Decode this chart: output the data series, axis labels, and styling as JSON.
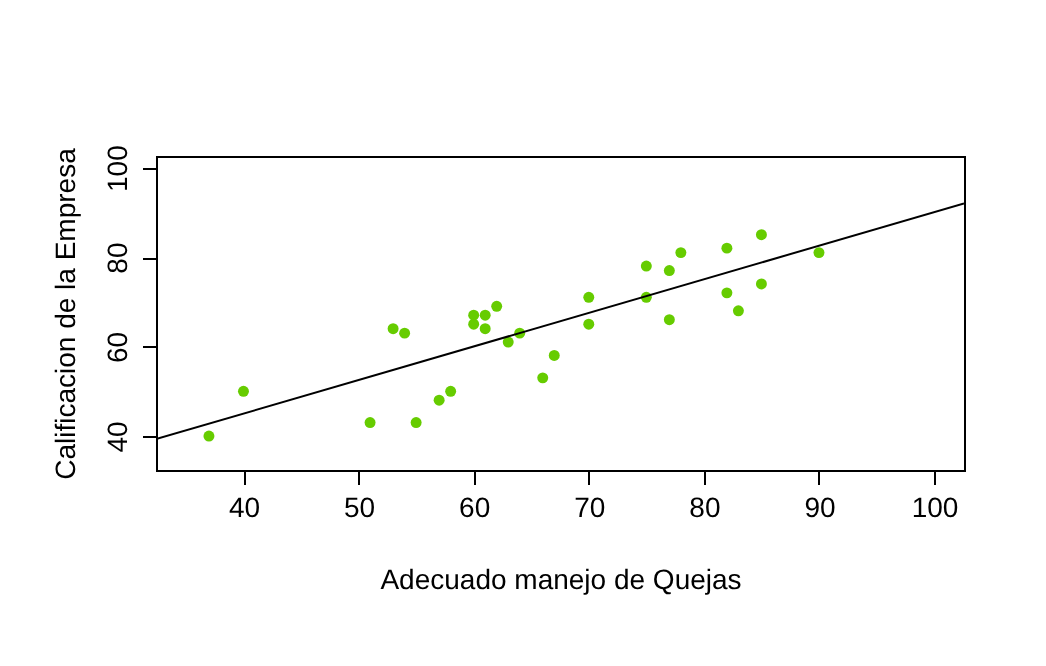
{
  "chart_data": {
    "type": "scatter",
    "xlabel": "Adecuado manejo de Quejas",
    "ylabel": "Calificacion de la Empresa",
    "xlim": [
      32.4,
      102.6
    ],
    "ylim": [
      32.4,
      102.6
    ],
    "xticks": [
      40,
      50,
      60,
      70,
      80,
      90,
      100
    ],
    "yticks": [
      40,
      60,
      80,
      100
    ],
    "grid": false,
    "series": [
      {
        "marker": "circle",
        "color": "#66cc00",
        "x": [
          37,
          40,
          51,
          53,
          54,
          55,
          57,
          58,
          60,
          60,
          61,
          61,
          62,
          63,
          64,
          66,
          67,
          70,
          70,
          75,
          75,
          77,
          77,
          78,
          82,
          82,
          83,
          85,
          85,
          90
        ],
        "values": [
          40,
          50,
          43,
          64,
          63,
          43,
          48,
          50,
          67,
          65,
          67,
          64,
          69,
          61,
          63,
          53,
          58,
          71,
          65,
          78,
          71,
          77,
          66,
          81,
          82,
          72,
          68,
          85,
          74,
          81
        ]
      },
      {
        "type": "line",
        "color": "#000000",
        "line_style": "solid",
        "x": [
          32.4,
          102.6
        ],
        "values": [
          39.3,
          92.0
        ]
      }
    ]
  }
}
